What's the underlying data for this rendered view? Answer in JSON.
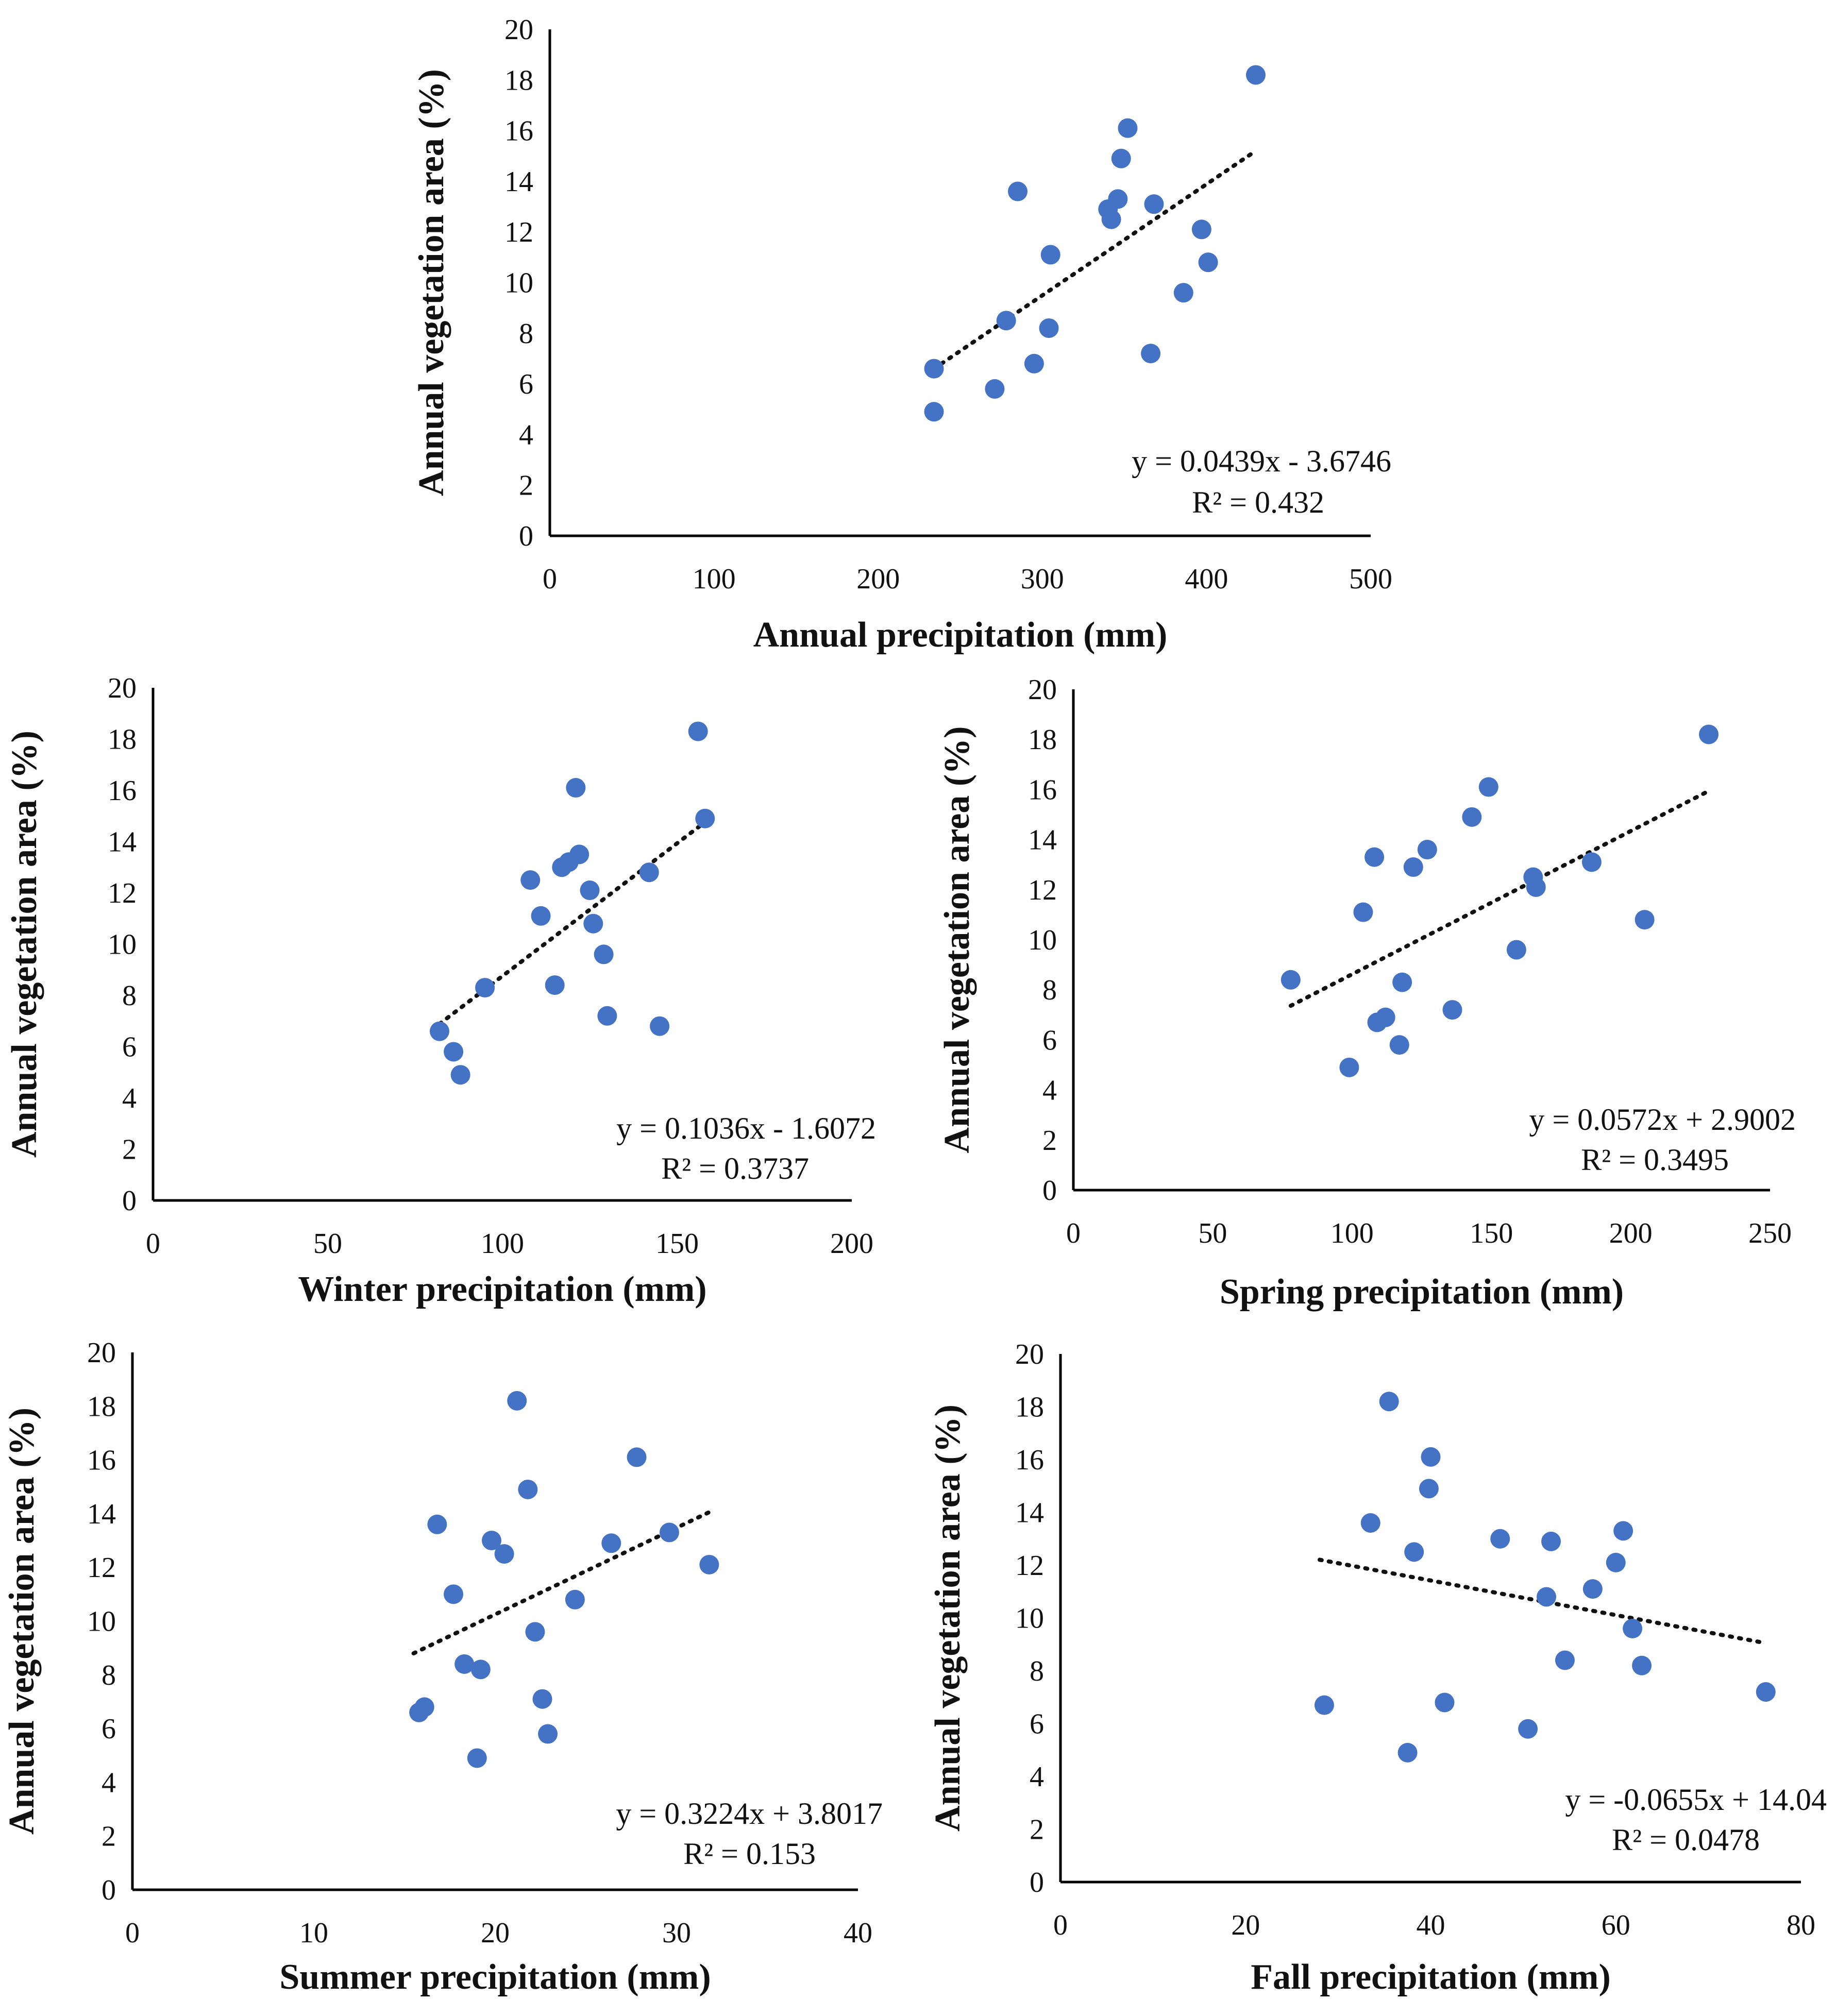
{
  "chart_data": [
    {
      "id": "annual",
      "type": "scatter",
      "xlabel": "Annual precipitation (mm)",
      "ylabel": "Annual vegetation area (%)",
      "xlim": [
        0,
        500
      ],
      "xticks": [
        0,
        100,
        200,
        300,
        400,
        500
      ],
      "ylim": [
        0,
        20
      ],
      "yticks": [
        0,
        2,
        4,
        6,
        8,
        10,
        12,
        14,
        16,
        18,
        20
      ],
      "equation": "y = 0.0439x - 3.6746",
      "r2": "R² = 0.432",
      "trend": {
        "slope": 0.0439,
        "intercept": -3.6746,
        "x_range": [
          234,
          430
        ]
      },
      "points": [
        [
          234,
          6.6
        ],
        [
          234,
          4.9
        ],
        [
          271,
          5.8
        ],
        [
          278,
          8.5
        ],
        [
          285,
          13.6
        ],
        [
          295,
          6.8
        ],
        [
          304,
          8.2
        ],
        [
          305,
          11.1
        ],
        [
          340,
          12.9
        ],
        [
          342,
          12.5
        ],
        [
          346,
          13.3
        ],
        [
          348,
          14.9
        ],
        [
          352,
          16.1
        ],
        [
          366,
          7.2
        ],
        [
          368,
          13.1
        ],
        [
          386,
          9.6
        ],
        [
          397,
          12.1
        ],
        [
          401,
          10.8
        ],
        [
          430,
          18.2
        ]
      ]
    },
    {
      "id": "winter",
      "type": "scatter",
      "xlabel": "Winter precipitation (mm)",
      "ylabel": "Annual vegetation area (%)",
      "xlim": [
        0,
        200
      ],
      "xticks": [
        0,
        50,
        100,
        150,
        200
      ],
      "ylim": [
        0,
        20
      ],
      "yticks": [
        0,
        2,
        4,
        6,
        8,
        10,
        12,
        14,
        16,
        18,
        20
      ],
      "equation": "y = 0.1036x - 1.6072",
      "r2": "R² = 0.3737",
      "trend": {
        "slope": 0.1036,
        "intercept": -1.6072,
        "x_range": [
          82,
          158
        ]
      },
      "points": [
        [
          82,
          6.6
        ],
        [
          86,
          5.8
        ],
        [
          88,
          4.9
        ],
        [
          95,
          8.3
        ],
        [
          108,
          12.5
        ],
        [
          111,
          11.1
        ],
        [
          115,
          8.4
        ],
        [
          117,
          13.0
        ],
        [
          119,
          13.2
        ],
        [
          121,
          16.1
        ],
        [
          122,
          13.5
        ],
        [
          125,
          12.1
        ],
        [
          126,
          10.8
        ],
        [
          129,
          9.6
        ],
        [
          130,
          7.2
        ],
        [
          142,
          12.8
        ],
        [
          145,
          6.8
        ],
        [
          156,
          18.3
        ],
        [
          158,
          14.9
        ]
      ]
    },
    {
      "id": "spring",
      "type": "scatter",
      "xlabel": "Spring precipitation (mm)",
      "ylabel": "Annual vegetation area (%)",
      "xlim": [
        0,
        250
      ],
      "xticks": [
        0,
        50,
        100,
        150,
        200,
        250
      ],
      "ylim": [
        0,
        20
      ],
      "yticks": [
        0,
        2,
        4,
        6,
        8,
        10,
        12,
        14,
        16,
        18,
        20
      ],
      "equation": "y = 0.0572x + 2.9002",
      "r2": "R² = 0.3495",
      "trend": {
        "slope": 0.0572,
        "intercept": 2.9002,
        "x_range": [
          78,
          228
        ]
      },
      "points": [
        [
          78,
          8.4
        ],
        [
          99,
          4.9
        ],
        [
          104,
          11.1
        ],
        [
          108,
          13.3
        ],
        [
          109,
          6.7
        ],
        [
          112,
          6.9
        ],
        [
          117,
          5.8
        ],
        [
          118,
          8.3
        ],
        [
          122,
          12.9
        ],
        [
          127,
          13.6
        ],
        [
          136,
          7.2
        ],
        [
          143,
          14.9
        ],
        [
          149,
          16.1
        ],
        [
          159,
          9.6
        ],
        [
          165,
          12.5
        ],
        [
          166,
          12.1
        ],
        [
          186,
          13.1
        ],
        [
          205,
          10.8
        ],
        [
          228,
          18.2
        ]
      ]
    },
    {
      "id": "summer",
      "type": "scatter",
      "xlabel": "Summer precipitation (mm)",
      "ylabel": "Annual vegetation area (%)",
      "xlim": [
        0,
        40
      ],
      "xticks": [
        0,
        10,
        20,
        30,
        40
      ],
      "ylim": [
        0,
        20
      ],
      "yticks": [
        0,
        2,
        4,
        6,
        8,
        10,
        12,
        14,
        16,
        18,
        20
      ],
      "equation": "y = 0.3224x + 3.8017",
      "r2": "R² = 0.153",
      "trend": {
        "slope": 0.3224,
        "intercept": 3.8017,
        "x_range": [
          15.5,
          31.8
        ]
      },
      "points": [
        [
          15.8,
          6.6
        ],
        [
          16.1,
          6.8
        ],
        [
          16.8,
          13.6
        ],
        [
          17.7,
          11.0
        ],
        [
          18.3,
          8.4
        ],
        [
          19.0,
          4.9
        ],
        [
          19.2,
          8.2
        ],
        [
          19.8,
          13.0
        ],
        [
          20.5,
          12.5
        ],
        [
          21.2,
          18.2
        ],
        [
          21.8,
          14.9
        ],
        [
          22.2,
          9.6
        ],
        [
          22.6,
          7.1
        ],
        [
          22.9,
          5.8
        ],
        [
          24.4,
          10.8
        ],
        [
          26.4,
          12.9
        ],
        [
          27.8,
          16.1
        ],
        [
          29.6,
          13.3
        ],
        [
          31.8,
          12.1
        ]
      ]
    },
    {
      "id": "fall",
      "type": "scatter",
      "xlabel": "Fall precipitation (mm)",
      "ylabel": "Annual vegetation area (%)",
      "xlim": [
        0,
        80
      ],
      "xticks": [
        0,
        20,
        40,
        60,
        80
      ],
      "ylim": [
        0,
        20
      ],
      "yticks": [
        0,
        2,
        4,
        6,
        8,
        10,
        12,
        14,
        16,
        18,
        20
      ],
      "equation": "y = -0.0655x + 14.04",
      "r2": "R² = 0.0478",
      "trend": {
        "slope": -0.0655,
        "intercept": 14.04,
        "x_range": [
          28,
          76
        ]
      },
      "points": [
        [
          28.5,
          6.7
        ],
        [
          33.5,
          13.6
        ],
        [
          35.5,
          18.2
        ],
        [
          37.5,
          4.9
        ],
        [
          38.2,
          12.5
        ],
        [
          39.8,
          14.9
        ],
        [
          40.0,
          16.1
        ],
        [
          41.5,
          6.8
        ],
        [
          47.5,
          13.0
        ],
        [
          50.5,
          5.8
        ],
        [
          52.5,
          10.8
        ],
        [
          53.0,
          12.9
        ],
        [
          54.5,
          8.4
        ],
        [
          57.5,
          11.1
        ],
        [
          60.0,
          12.1
        ],
        [
          60.8,
          13.3
        ],
        [
          61.8,
          9.6
        ],
        [
          62.8,
          8.2
        ],
        [
          76.2,
          7.2
        ]
      ]
    }
  ]
}
